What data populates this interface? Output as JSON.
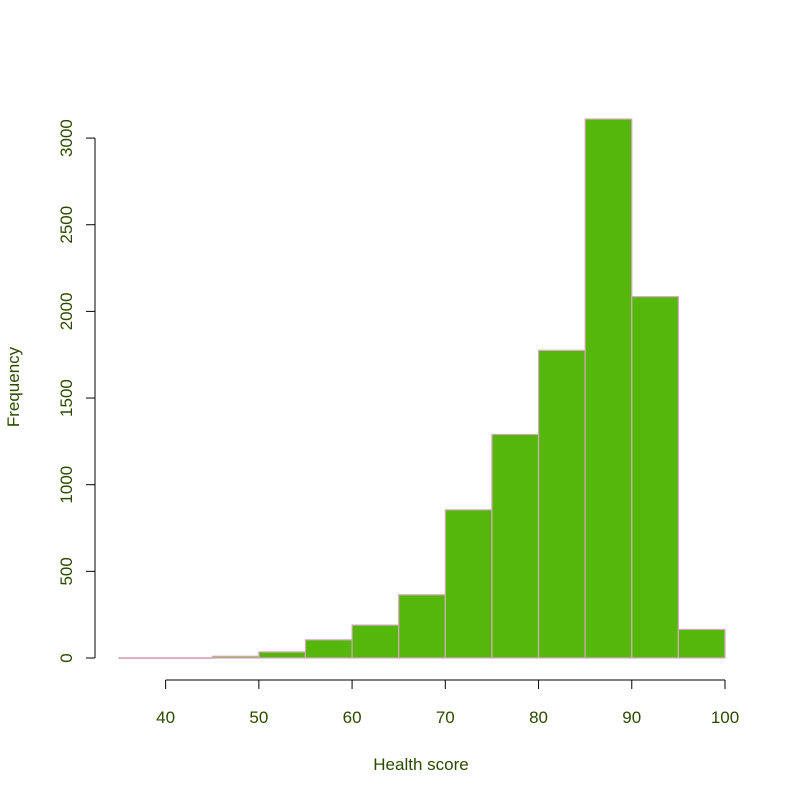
{
  "chart_data": {
    "type": "bar",
    "title": "",
    "xlabel": "Health score",
    "ylabel": "Frequency",
    "bin_edges": [
      35,
      40,
      45,
      50,
      55,
      60,
      65,
      70,
      75,
      80,
      85,
      90,
      95,
      100
    ],
    "values": [
      1,
      1,
      10,
      35,
      105,
      190,
      365,
      855,
      1290,
      1775,
      3110,
      2085,
      165
    ],
    "xlim": [
      35,
      100
    ],
    "ylim": [
      0,
      3110
    ],
    "x_ticks": [
      40,
      50,
      60,
      70,
      80,
      90,
      100
    ],
    "y_ticks": [
      0,
      500,
      1000,
      1500,
      2000,
      2500,
      3000
    ],
    "grid": false,
    "colors": {
      "bar_fill": "#55b70b",
      "bar_border": "#d8a8c0",
      "text": "#2b4a00",
      "axis": "#000000"
    }
  }
}
